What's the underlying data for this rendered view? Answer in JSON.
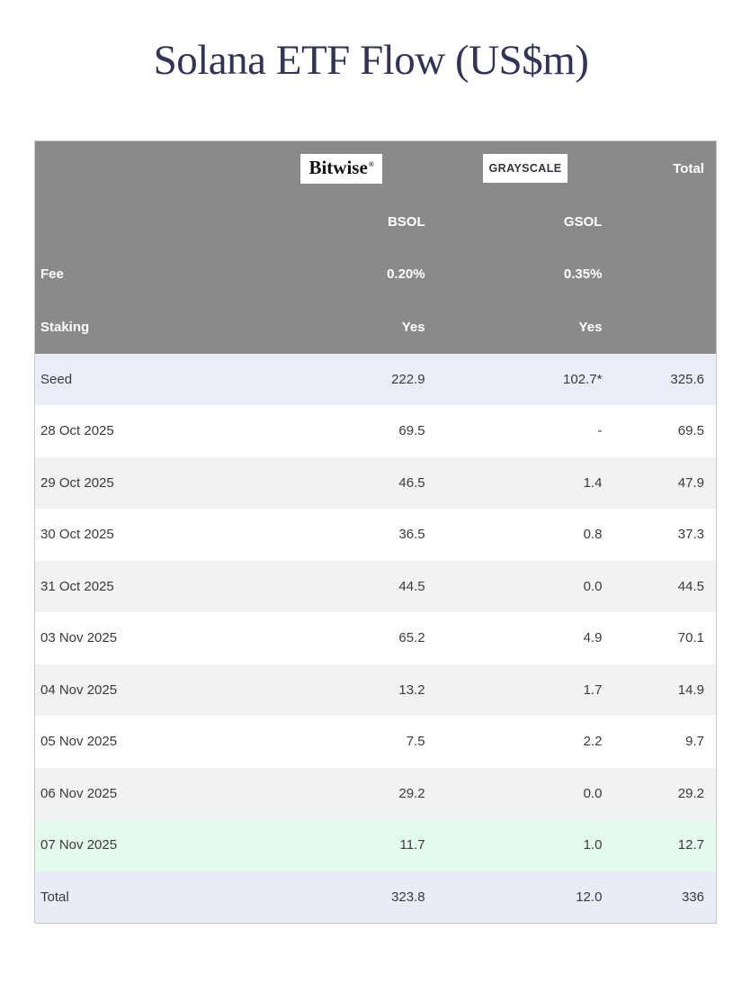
{
  "page": {
    "title": "Solana ETF Flow (US$m)"
  },
  "colors": {
    "title_color": "#333454",
    "header_bg": "#8a8a8a",
    "seed_bg": "#e9edf8",
    "stripe_bg": "#f2f2f2",
    "latest_bg": "#e4faee",
    "total_bg": "#e8ecf8",
    "table_border": "#ccc8bd"
  },
  "table": {
    "header": {
      "bitwise_logo": "Bitwise",
      "bitwise_mark": "®",
      "grayscale_logo": "GRAYSCALE",
      "total_label": "Total",
      "ticker_row": {
        "label": "",
        "bsol": "BSOL",
        "gsol": "GSOL",
        "total": ""
      },
      "fee_row": {
        "label": "Fee",
        "bsol": "0.20%",
        "gsol": "0.35%",
        "total": ""
      },
      "staking_row": {
        "label": "Staking",
        "bsol": "Yes",
        "gsol": "Yes",
        "total": ""
      }
    },
    "rows": [
      {
        "label": "Seed",
        "bsol": "222.9",
        "gsol": "102.7*",
        "total": "325.6"
      },
      {
        "label": "28 Oct 2025",
        "bsol": "69.5",
        "gsol": "-",
        "total": "69.5"
      },
      {
        "label": "29 Oct 2025",
        "bsol": "46.5",
        "gsol": "1.4",
        "total": "47.9"
      },
      {
        "label": "30 Oct 2025",
        "bsol": "36.5",
        "gsol": "0.8",
        "total": "37.3"
      },
      {
        "label": "31 Oct 2025",
        "bsol": "44.5",
        "gsol": "0.0",
        "total": "44.5"
      },
      {
        "label": "03 Nov 2025",
        "bsol": "65.2",
        "gsol": "4.9",
        "total": "70.1"
      },
      {
        "label": "04 Nov 2025",
        "bsol": "13.2",
        "gsol": "1.7",
        "total": "14.9"
      },
      {
        "label": "05 Nov 2025",
        "bsol": "7.5",
        "gsol": "2.2",
        "total": "9.7"
      },
      {
        "label": "06 Nov 2025",
        "bsol": "29.2",
        "gsol": "0.0",
        "total": "29.2"
      },
      {
        "label": "07 Nov 2025",
        "bsol": "11.7",
        "gsol": "1.0",
        "total": "12.7"
      },
      {
        "label": "Total",
        "bsol": "323.8",
        "gsol": "12.0",
        "total": "336"
      }
    ]
  },
  "chart_data": {
    "type": "table",
    "title": "Solana ETF Flow (US$m)",
    "columns": [
      "",
      "BSOL",
      "GSOL",
      "Total"
    ],
    "providers": [
      "Bitwise",
      "Grayscale"
    ],
    "fees": {
      "BSOL": "0.20%",
      "GSOL": "0.35%"
    },
    "staking": {
      "BSOL": "Yes",
      "GSOL": "Yes"
    },
    "rows": [
      {
        "label": "Seed",
        "bsol": 222.9,
        "gsol": 102.7,
        "gsol_note": "asterisk",
        "total": 325.6
      },
      {
        "label": "28 Oct 2025",
        "bsol": 69.5,
        "gsol": null,
        "total": 69.5
      },
      {
        "label": "29 Oct 2025",
        "bsol": 46.5,
        "gsol": 1.4,
        "total": 47.9
      },
      {
        "label": "30 Oct 2025",
        "bsol": 36.5,
        "gsol": 0.8,
        "total": 37.3
      },
      {
        "label": "31 Oct 2025",
        "bsol": 44.5,
        "gsol": 0.0,
        "total": 44.5
      },
      {
        "label": "03 Nov 2025",
        "bsol": 65.2,
        "gsol": 4.9,
        "total": 70.1
      },
      {
        "label": "04 Nov 2025",
        "bsol": 13.2,
        "gsol": 1.7,
        "total": 14.9
      },
      {
        "label": "05 Nov 2025",
        "bsol": 7.5,
        "gsol": 2.2,
        "total": 9.7
      },
      {
        "label": "06 Nov 2025",
        "bsol": 29.2,
        "gsol": 0.0,
        "total": 29.2
      },
      {
        "label": "07 Nov 2025",
        "bsol": 11.7,
        "gsol": 1.0,
        "total": 12.7
      },
      {
        "label": "Total",
        "bsol": 323.8,
        "gsol": 12.0,
        "total": 336
      }
    ]
  }
}
